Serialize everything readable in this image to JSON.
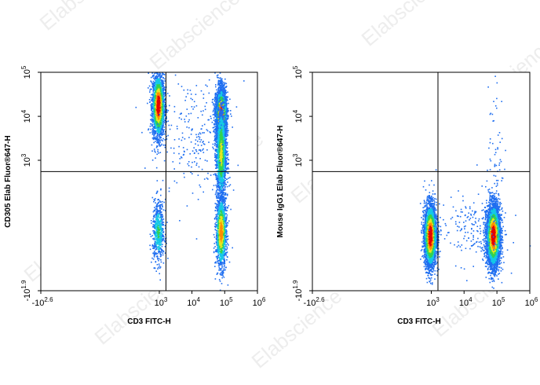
{
  "watermark": "Elabscience",
  "chart_data": [
    {
      "type": "scatter",
      "subtype": "flow-cytometry-density",
      "xlabel": "CD3 FITC-H",
      "ylabel": "CD305 Elab Fluor®647-H",
      "x_scale": "biexponential",
      "y_scale": "biexponential",
      "x_ticks": [
        {
          "base": "-10",
          "exp": "2.6"
        },
        {
          "base": "10",
          "exp": "3"
        },
        {
          "base": "10",
          "exp": "4"
        },
        {
          "base": "10",
          "exp": "5"
        },
        {
          "base": "10",
          "exp": "6"
        }
      ],
      "y_ticks": [
        {
          "base": "-10",
          "exp": "1.9"
        },
        {
          "base": "10",
          "exp": "3"
        },
        {
          "base": "10",
          "exp": "4"
        },
        {
          "base": "10",
          "exp": "5"
        }
      ],
      "gate": {
        "x": 1600,
        "y": 550
      },
      "populations": [
        {
          "x": 900,
          "y": 18000,
          "sx": 0.09,
          "sy": 0.35,
          "n": 2600,
          "peak": 1.0
        },
        {
          "x": 900,
          "y": 15,
          "sx": 0.09,
          "sy": 0.35,
          "n": 600,
          "peak": 0.4
        },
        {
          "x": 75000,
          "y": 11000,
          "sx": 0.08,
          "sy": 0.3,
          "n": 3200,
          "peak": 1.0
        },
        {
          "x": 75000,
          "y": 1500,
          "sx": 0.08,
          "sy": 0.55,
          "n": 1800,
          "peak": 0.6
        },
        {
          "x": 75000,
          "y": 15,
          "sx": 0.08,
          "sy": 0.4,
          "n": 1400,
          "peak": 0.8
        },
        {
          "x": 12000,
          "y": 4000,
          "sx": 0.6,
          "sy": 0.7,
          "n": 250,
          "peak": 0.05
        }
      ]
    },
    {
      "type": "scatter",
      "subtype": "flow-cytometry-density",
      "xlabel": "CD3 FITC-H",
      "ylabel": "Mouse IgG1 Elab Fluor®647-H",
      "x_scale": "biexponential",
      "y_scale": "biexponential",
      "x_ticks": [
        {
          "base": "-10",
          "exp": "2.6"
        },
        {
          "base": "10",
          "exp": "3"
        },
        {
          "base": "10",
          "exp": "4"
        },
        {
          "base": "10",
          "exp": "5"
        },
        {
          "base": "10",
          "exp": "6"
        }
      ],
      "y_ticks": [
        {
          "base": "-10",
          "exp": "1.9"
        },
        {
          "base": "10",
          "exp": "3"
        },
        {
          "base": "10",
          "exp": "4"
        },
        {
          "base": "10",
          "exp": "5"
        }
      ],
      "gate": {
        "x": 1600,
        "y": 550
      },
      "populations": [
        {
          "x": 900,
          "y": 10,
          "sx": 0.09,
          "sy": 0.35,
          "n": 3500,
          "peak": 1.0
        },
        {
          "x": 75000,
          "y": 10,
          "sx": 0.1,
          "sy": 0.35,
          "n": 4500,
          "peak": 1.0
        },
        {
          "x": 15000,
          "y": 20,
          "sx": 0.55,
          "sy": 0.4,
          "n": 200,
          "peak": 0.05
        },
        {
          "x": 90000,
          "y": 1500,
          "sx": 0.12,
          "sy": 0.8,
          "n": 60,
          "peak": 0.02
        }
      ]
    }
  ]
}
